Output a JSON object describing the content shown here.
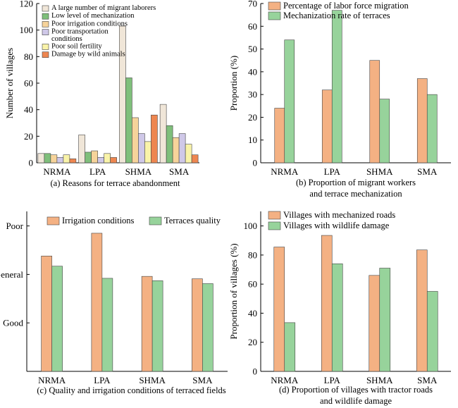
{
  "chart_data": [
    {
      "type": "bar",
      "caption": "(a) Reasons for terrace abandonment",
      "ylabel": "Number of villages",
      "ylim": [
        0,
        120
      ],
      "yticks": [
        0,
        20,
        40,
        60,
        80,
        100,
        120
      ],
      "categories": [
        "NRMA",
        "LPA",
        "SHMA",
        "SMA"
      ],
      "legend_position": "top-left",
      "series": [
        {
          "name": "A large number of migrant laborers",
          "color": "#f0e6d8",
          "values": [
            7,
            21,
            103,
            44
          ]
        },
        {
          "name": "Low level of mechanization",
          "color": "#7fbf7b",
          "values": [
            7,
            8,
            64,
            28
          ]
        },
        {
          "name": "Poor irrigation conditions",
          "color": "#f6d39a",
          "values": [
            6,
            9,
            34,
            19
          ]
        },
        {
          "name": "Poor transportation conditions",
          "color": "#cfc8e8",
          "values": [
            4,
            4,
            22,
            22
          ]
        },
        {
          "name": "Poor soil fertility",
          "color": "#f9f3a9",
          "values": [
            6,
            7,
            16,
            14
          ]
        },
        {
          "name": "Damage by wild animals",
          "color": "#ee8650",
          "values": [
            3,
            4,
            36,
            6
          ]
        }
      ]
    },
    {
      "type": "bar",
      "caption": "(b) Proportion of migrant workers and terrace mechanization",
      "ylabel": "Proportion (%)",
      "ylim": [
        0,
        70
      ],
      "yticks": [
        0,
        10,
        20,
        30,
        40,
        50,
        60,
        70
      ],
      "categories": [
        "NRMA",
        "LPA",
        "SHMA",
        "SMA"
      ],
      "legend_position": "top-left",
      "series": [
        {
          "name": "Percentage of labor force migration",
          "color": "#f4b183",
          "values": [
            24,
            32,
            45,
            37
          ]
        },
        {
          "name": "Mechanization rate of terraces",
          "color": "#97d39b",
          "values": [
            54,
            67,
            28,
            30
          ]
        }
      ]
    },
    {
      "type": "bar",
      "caption": "(c) Quality and irrigation conditions of terraced fields",
      "ylabel": "",
      "ylim": [
        0,
        3.3
      ],
      "yticks": [
        1,
        2,
        3
      ],
      "yticklabels": [
        "Good",
        "General",
        "Poor"
      ],
      "categories": [
        "NRMA",
        "LPA",
        "SHMA",
        "SMA"
      ],
      "legend_position": "top",
      "series": [
        {
          "name": "Irrigation conditions",
          "color": "#f4b183",
          "values": [
            2.38,
            2.85,
            1.96,
            1.91
          ]
        },
        {
          "name": "Terraces quality",
          "color": "#97d39b",
          "values": [
            2.17,
            1.92,
            1.87,
            1.81
          ]
        }
      ]
    },
    {
      "type": "bar",
      "caption": "(d) Proportion of villages with tractor roads and wildlife damage",
      "ylabel": "Proportion of villages (%)",
      "ylim": [
        0,
        110
      ],
      "yticks": [
        0,
        20,
        40,
        60,
        80,
        100
      ],
      "categories": [
        "NRMA",
        "LPA",
        "SHMA",
        "SMA"
      ],
      "legend_position": "top-left",
      "series": [
        {
          "name": "Villages with mechanized roads",
          "color": "#f4b183",
          "values": [
            85.5,
            93.5,
            66,
            83.5
          ]
        },
        {
          "name": "Villages with wildlife damage",
          "color": "#97d39b",
          "values": [
            33.5,
            74,
            71,
            55
          ]
        }
      ]
    }
  ]
}
